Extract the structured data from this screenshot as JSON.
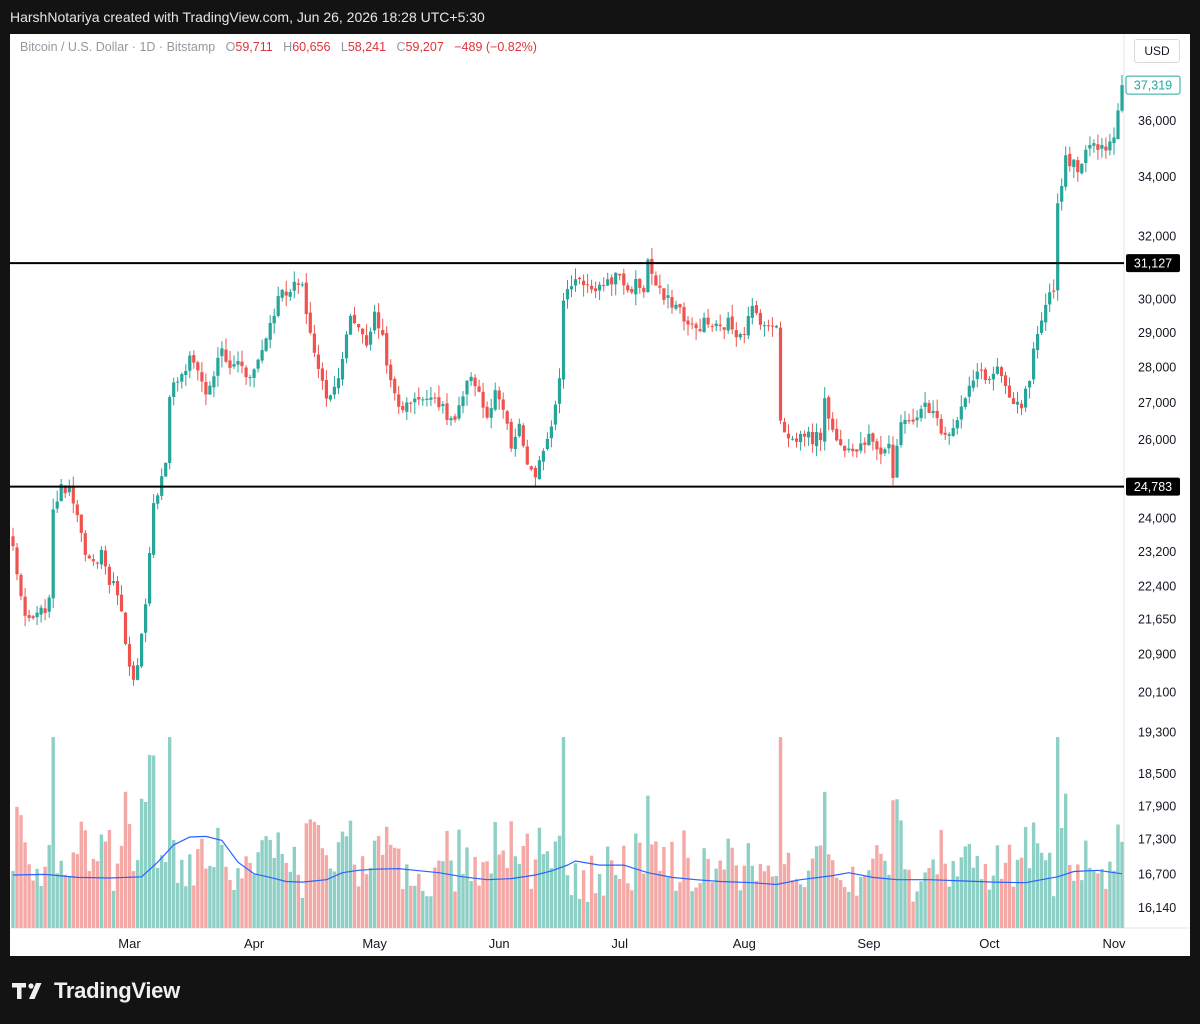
{
  "attribution": "HarshNotariya created with TradingView.com, Jun 26, 2026 18:28 UTC+5:30",
  "legend": {
    "symbol": "Bitcoin / U.S. Dollar · 1D · Bitstamp",
    "o_label": "O",
    "o_value": "59,711",
    "h_label": "H",
    "h_value": "60,656",
    "l_label": "L",
    "l_value": "58,241",
    "c_label": "C",
    "c_value": "59,207",
    "change": "−489 (−0.82%)"
  },
  "currency_button": "USD",
  "brand": "TradingView",
  "colors": {
    "up": "#26a69a",
    "down": "#ef5350",
    "up_vol": "#8fd0c6",
    "down_vol": "#f4a9a6",
    "volume_ma": "#2962ff",
    "level_line": "#000000",
    "background": "#ffffff"
  },
  "chart_data": {
    "type": "candlestick",
    "scale": "log",
    "ylim": [
      15900,
      38600
    ],
    "y_ticks": [
      36000,
      34000,
      32000,
      30000,
      29000,
      28000,
      27000,
      26000,
      24000,
      23200,
      22400,
      21650,
      20900,
      20100,
      19300,
      18500,
      17900,
      17300,
      16700,
      16140
    ],
    "y_tick_labels": [
      "36,000",
      "34,000",
      "32,000",
      "30,000",
      "29,000",
      "28,000",
      "27,000",
      "26,000",
      "24,000",
      "23,200",
      "22,400",
      "21,650",
      "20,900",
      "20,100",
      "19,300",
      "18,500",
      "17,900",
      "17,300",
      "16,700",
      "16,140"
    ],
    "x_labels": [
      {
        "label": "Mar",
        "day": 29
      },
      {
        "label": "Apr",
        "day": 60
      },
      {
        "label": "May",
        "day": 90
      },
      {
        "label": "Jun",
        "day": 121
      },
      {
        "label": "Jul",
        "day": 151
      },
      {
        "label": "Aug",
        "day": 182
      },
      {
        "label": "Sep",
        "day": 213
      },
      {
        "label": "Oct",
        "day": 243
      },
      {
        "label": "Nov",
        "day": 274
      }
    ],
    "x_range": [
      0,
      283
    ],
    "levels": [
      {
        "value": 31127,
        "label": "31,127"
      },
      {
        "value": 24783,
        "label": "24,783"
      }
    ],
    "last_price": {
      "value": 37319,
      "label": "37,319"
    },
    "close_path": [
      [
        0,
        23300
      ],
      [
        3,
        21600
      ],
      [
        6,
        21700
      ],
      [
        9,
        22000
      ],
      [
        10,
        24300
      ],
      [
        12,
        24700
      ],
      [
        14,
        24800
      ],
      [
        16,
        24200
      ],
      [
        18,
        23000
      ],
      [
        20,
        22900
      ],
      [
        22,
        23200
      ],
      [
        24,
        22500
      ],
      [
        26,
        22300
      ],
      [
        28,
        21200
      ],
      [
        30,
        20300
      ],
      [
        31,
        20600
      ],
      [
        33,
        21900
      ],
      [
        35,
        24300
      ],
      [
        36,
        24700
      ],
      [
        38,
        25500
      ],
      [
        39,
        27100
      ],
      [
        40,
        27600
      ],
      [
        42,
        27700
      ],
      [
        44,
        28200
      ],
      [
        46,
        28000
      ],
      [
        48,
        27200
      ],
      [
        50,
        27800
      ],
      [
        52,
        28500
      ],
      [
        54,
        27900
      ],
      [
        56,
        28200
      ],
      [
        58,
        27800
      ],
      [
        60,
        27900
      ],
      [
        62,
        28500
      ],
      [
        64,
        29300
      ],
      [
        66,
        30000
      ],
      [
        67,
        30400
      ],
      [
        69,
        30100
      ],
      [
        70,
        30500
      ],
      [
        72,
        30300
      ],
      [
        74,
        29000
      ],
      [
        76,
        27900
      ],
      [
        78,
        27200
      ],
      [
        80,
        27400
      ],
      [
        82,
        28300
      ],
      [
        84,
        29400
      ],
      [
        86,
        29200
      ],
      [
        88,
        28700
      ],
      [
        90,
        29500
      ],
      [
        92,
        28900
      ],
      [
        94,
        27500
      ],
      [
        96,
        26900
      ],
      [
        98,
        26900
      ],
      [
        100,
        27200
      ],
      [
        102,
        27000
      ],
      [
        104,
        27300
      ],
      [
        106,
        27000
      ],
      [
        108,
        26600
      ],
      [
        110,
        26500
      ],
      [
        112,
        27100
      ],
      [
        114,
        27800
      ],
      [
        116,
        27300
      ],
      [
        118,
        26500
      ],
      [
        120,
        27200
      ],
      [
        122,
        26800
      ],
      [
        124,
        25800
      ],
      [
        126,
        26300
      ],
      [
        128,
        25400
      ],
      [
        130,
        24900
      ],
      [
        132,
        25800
      ],
      [
        134,
        26400
      ],
      [
        136,
        27800
      ],
      [
        137,
        29900
      ],
      [
        139,
        30500
      ],
      [
        141,
        30700
      ],
      [
        143,
        30400
      ],
      [
        145,
        30100
      ],
      [
        147,
        30500
      ],
      [
        149,
        30600
      ],
      [
        151,
        30800
      ],
      [
        153,
        30200
      ],
      [
        155,
        30500
      ],
      [
        157,
        30300
      ],
      [
        158,
        31200
      ],
      [
        160,
        30400
      ],
      [
        162,
        30000
      ],
      [
        164,
        29900
      ],
      [
        166,
        29700
      ],
      [
        168,
        29200
      ],
      [
        170,
        29100
      ],
      [
        172,
        29300
      ],
      [
        174,
        29200
      ],
      [
        176,
        29100
      ],
      [
        178,
        29300
      ],
      [
        180,
        29000
      ],
      [
        182,
        29100
      ],
      [
        184,
        29700
      ],
      [
        186,
        29400
      ],
      [
        188,
        29100
      ],
      [
        190,
        29300
      ],
      [
        191,
        26600
      ],
      [
        193,
        26000
      ],
      [
        195,
        26000
      ],
      [
        197,
        26200
      ],
      [
        199,
        26000
      ],
      [
        201,
        26100
      ],
      [
        202,
        27200
      ],
      [
        204,
        26200
      ],
      [
        206,
        25800
      ],
      [
        208,
        25900
      ],
      [
        210,
        25800
      ],
      [
        212,
        26000
      ],
      [
        214,
        26000
      ],
      [
        216,
        25700
      ],
      [
        218,
        25900
      ],
      [
        219,
        25000
      ],
      [
        221,
        26400
      ],
      [
        223,
        26600
      ],
      [
        225,
        26500
      ],
      [
        227,
        27000
      ],
      [
        229,
        26700
      ],
      [
        231,
        26300
      ],
      [
        233,
        26200
      ],
      [
        235,
        26600
      ],
      [
        237,
        27100
      ],
      [
        239,
        27600
      ],
      [
        241,
        27900
      ],
      [
        243,
        27600
      ],
      [
        245,
        28000
      ],
      [
        247,
        27300
      ],
      [
        249,
        26900
      ],
      [
        251,
        26900
      ],
      [
        253,
        27600
      ],
      [
        254,
        28400
      ],
      [
        256,
        29200
      ],
      [
        258,
        30200
      ],
      [
        259,
        30400
      ],
      [
        260,
        33000
      ],
      [
        262,
        34700
      ],
      [
        264,
        34400
      ],
      [
        266,
        34300
      ],
      [
        268,
        35300
      ],
      [
        270,
        35100
      ],
      [
        272,
        35100
      ],
      [
        274,
        35500
      ],
      [
        276,
        37319
      ]
    ],
    "volume_ma_line": [
      [
        0,
        16680
      ],
      [
        8,
        16690
      ],
      [
        16,
        16640
      ],
      [
        24,
        16630
      ],
      [
        32,
        16650
      ],
      [
        36,
        16900
      ],
      [
        40,
        17200
      ],
      [
        44,
        17340
      ],
      [
        48,
        17350
      ],
      [
        52,
        17280
      ],
      [
        56,
        16900
      ],
      [
        60,
        16700
      ],
      [
        64,
        16640
      ],
      [
        68,
        16570
      ],
      [
        72,
        16560
      ],
      [
        78,
        16600
      ],
      [
        82,
        16720
      ],
      [
        86,
        16760
      ],
      [
        90,
        16780
      ],
      [
        96,
        16790
      ],
      [
        100,
        16760
      ],
      [
        106,
        16720
      ],
      [
        112,
        16650
      ],
      [
        118,
        16600
      ],
      [
        124,
        16620
      ],
      [
        130,
        16680
      ],
      [
        134,
        16750
      ],
      [
        138,
        16850
      ],
      [
        140,
        16920
      ],
      [
        146,
        16850
      ],
      [
        152,
        16850
      ],
      [
        158,
        16720
      ],
      [
        164,
        16640
      ],
      [
        170,
        16600
      ],
      [
        176,
        16570
      ],
      [
        184,
        16550
      ],
      [
        190,
        16520
      ],
      [
        196,
        16600
      ],
      [
        204,
        16670
      ],
      [
        208,
        16720
      ],
      [
        214,
        16640
      ],
      [
        220,
        16600
      ],
      [
        228,
        16600
      ],
      [
        236,
        16580
      ],
      [
        244,
        16560
      ],
      [
        252,
        16550
      ],
      [
        256,
        16600
      ],
      [
        260,
        16650
      ],
      [
        264,
        16740
      ],
      [
        270,
        16760
      ],
      [
        276,
        16700
      ]
    ]
  }
}
